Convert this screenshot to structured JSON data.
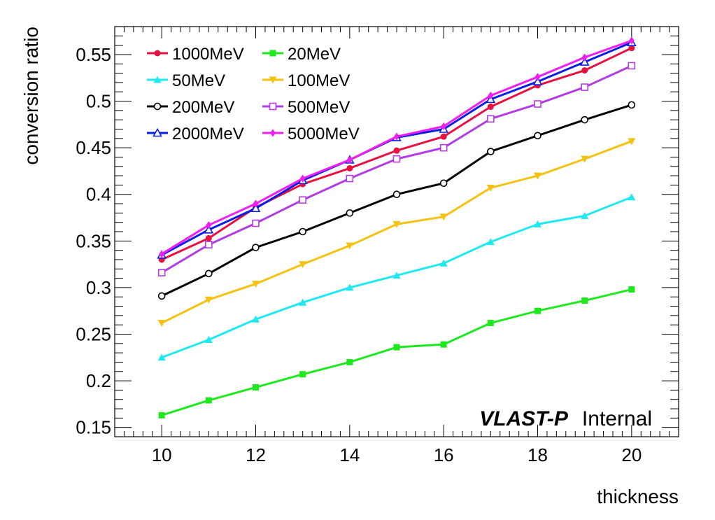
{
  "chart_data": {
    "type": "line",
    "xlabel": "thickness",
    "ylabel": "conversion ratio",
    "xlim": [
      9,
      21
    ],
    "ylim": [
      0.14,
      0.58
    ],
    "xticks": [
      10,
      12,
      14,
      16,
      18,
      20
    ],
    "xtick_labels": [
      "10",
      "12",
      "14",
      "16",
      "18",
      "20"
    ],
    "yticks": [
      0.15,
      0.2,
      0.25,
      0.3,
      0.35,
      0.4,
      0.45,
      0.5,
      0.55
    ],
    "ytick_labels": [
      "0.15",
      "0.2",
      "0.25",
      "0.3",
      "0.35",
      "0.4",
      "0.45",
      "0.5",
      "0.55"
    ],
    "grid": false,
    "legend_position": "top-left",
    "x": [
      10,
      11,
      12,
      13,
      14,
      15,
      16,
      17,
      18,
      19,
      20
    ],
    "series": [
      {
        "name": "1000MeV",
        "color": "#e8103f",
        "marker": "circle-filled",
        "values": [
          0.33,
          0.353,
          0.386,
          0.411,
          0.428,
          0.447,
          0.462,
          0.494,
          0.517,
          0.533,
          0.557
        ]
      },
      {
        "name": "20MeV",
        "color": "#1ee81e",
        "marker": "square-filled",
        "values": [
          0.163,
          0.179,
          0.193,
          0.207,
          0.22,
          0.236,
          0.239,
          0.262,
          0.275,
          0.286,
          0.298
        ]
      },
      {
        "name": "50MeV",
        "color": "#1ee8f0",
        "marker": "triangle-up-filled",
        "values": [
          0.225,
          0.244,
          0.266,
          0.284,
          0.3,
          0.313,
          0.326,
          0.349,
          0.368,
          0.377,
          0.397
        ]
      },
      {
        "name": "100MeV",
        "color": "#f5c211",
        "marker": "triangle-down-filled",
        "values": [
          0.262,
          0.287,
          0.304,
          0.325,
          0.345,
          0.368,
          0.376,
          0.407,
          0.42,
          0.438,
          0.457
        ]
      },
      {
        "name": "200MeV",
        "color": "#000000",
        "marker": "circle-open",
        "values": [
          0.291,
          0.315,
          0.343,
          0.36,
          0.38,
          0.4,
          0.412,
          0.446,
          0.463,
          0.48,
          0.496
        ]
      },
      {
        "name": "500MeV",
        "color": "#b13ce6",
        "marker": "square-open",
        "values": [
          0.316,
          0.346,
          0.369,
          0.394,
          0.417,
          0.438,
          0.45,
          0.481,
          0.497,
          0.515,
          0.538
        ]
      },
      {
        "name": "2000MeV",
        "color": "#0a1ee6",
        "marker": "triangle-up-open",
        "values": [
          0.335,
          0.362,
          0.385,
          0.415,
          0.437,
          0.461,
          0.47,
          0.502,
          0.521,
          0.542,
          0.563
        ]
      },
      {
        "name": "5000MeV",
        "color": "#f01ef0",
        "marker": "diamond-filled",
        "values": [
          0.336,
          0.367,
          0.39,
          0.417,
          0.437,
          0.462,
          0.473,
          0.506,
          0.526,
          0.547,
          0.565
        ]
      }
    ],
    "legend_order": [
      "1000MeV",
      "20MeV",
      "50MeV",
      "100MeV",
      "200MeV",
      "500MeV",
      "2000MeV",
      "5000MeV"
    ],
    "annotation": {
      "bold_text": "VLAST-P",
      "normal_text": "Internal",
      "position": "bottom-right"
    }
  }
}
